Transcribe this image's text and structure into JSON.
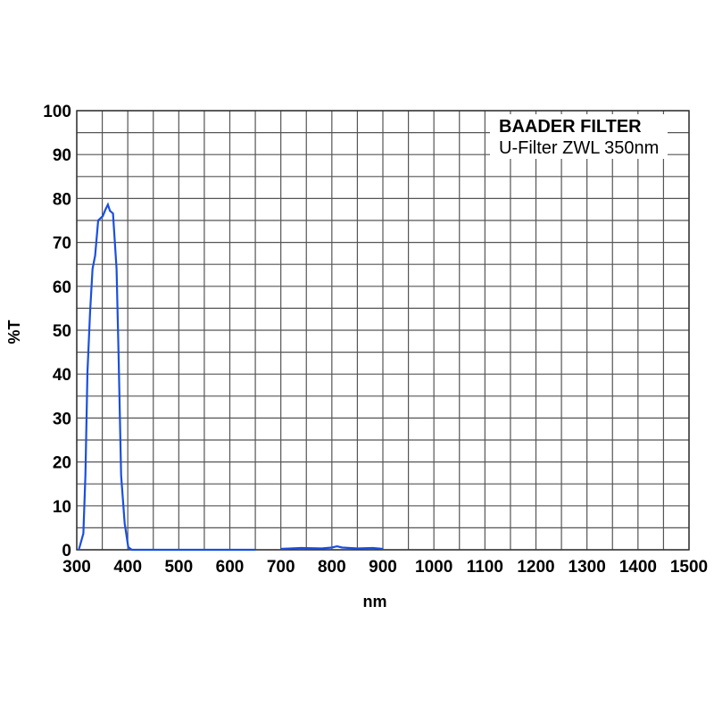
{
  "chart_data": {
    "type": "line",
    "title": "BAADER FILTER",
    "subtitle": "U-Filter ZWL 350nm",
    "xlabel": "nm",
    "ylabel": "%T",
    "xlim": [
      300,
      1500
    ],
    "ylim": [
      0,
      100
    ],
    "xticks": [
      300,
      400,
      500,
      600,
      700,
      800,
      900,
      1000,
      1100,
      1200,
      1300,
      1400,
      1500
    ],
    "yticks": [
      0,
      10,
      20,
      30,
      40,
      50,
      60,
      70,
      80,
      90,
      100
    ],
    "grid": true,
    "grid_minor_x_step": 50,
    "grid_minor_y_step": 5,
    "color": "#1a4fe0",
    "series": [
      {
        "x": [
          304,
          313,
          317,
          321,
          326,
          331,
          336,
          342,
          351,
          356,
          361,
          365,
          371,
          378,
          382,
          387,
          394,
          401,
          408,
          450,
          500,
          550,
          600,
          650
        ],
        "y": [
          0,
          3.7,
          17,
          40.5,
          54,
          64,
          67,
          75,
          76,
          77.4,
          78.6,
          77.2,
          76.6,
          64,
          44,
          17,
          6,
          0.6,
          0,
          0,
          0,
          0,
          0,
          0
        ]
      },
      {
        "x": [
          700,
          740,
          780,
          800,
          810,
          820,
          850,
          880,
          900
        ],
        "y": [
          0.2,
          0.4,
          0.3,
          0.5,
          0.8,
          0.5,
          0.3,
          0.4,
          0.2
        ]
      }
    ]
  }
}
